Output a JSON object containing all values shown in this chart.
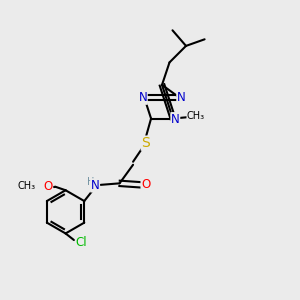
{
  "bg_color": "#ebebeb",
  "bond_color": "#000000",
  "bond_width": 1.5,
  "atom_colors": {
    "N": "#0000cc",
    "O": "#ff0000",
    "S": "#ccaa00",
    "Cl": "#00bb00",
    "C": "#000000",
    "H": "#7090a0"
  },
  "font_size": 8.5,
  "figsize": [
    3.0,
    3.0
  ],
  "dpi": 100,
  "xlim": [
    0,
    10
  ],
  "ylim": [
    0,
    10
  ]
}
